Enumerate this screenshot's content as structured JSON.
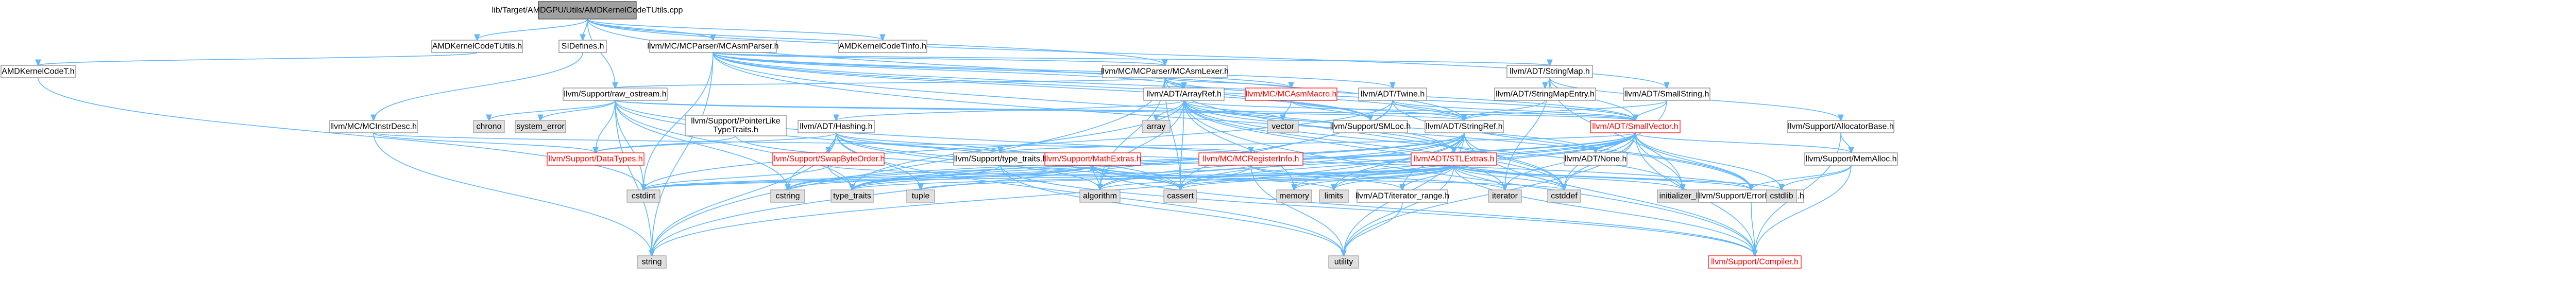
{
  "graph": {
    "title": "",
    "nodes": [
      {
        "id": "root",
        "label": "lib/Target/AMDGPU/Utils/AMDKernelCodeTUtils.cpp",
        "kind": "root"
      },
      {
        "id": "AMDKernelCodeTUtils.h",
        "label": "AMDKernelCodeTUtils.h",
        "kind": "doc"
      },
      {
        "id": "SIDefines.h",
        "label": "SIDefines.h",
        "kind": "doc"
      },
      {
        "id": "AMDKernelCodeTInfo.h",
        "label": "AMDKernelCodeTInfo.h",
        "kind": "doc"
      },
      {
        "id": "MCAsmParser.h",
        "label": "llvm/MC/MCParser/MCAsmParser.h",
        "kind": "doc"
      },
      {
        "id": "AMDKernelCodeT.h",
        "label": "AMDKernelCodeT.h",
        "kind": "doc"
      },
      {
        "id": "MCAsmLexer.h",
        "label": "llvm/MC/MCParser/MCAsmLexer.h",
        "kind": "doc"
      },
      {
        "id": "StringMap.h",
        "label": "llvm/ADT/StringMap.h",
        "kind": "doc"
      },
      {
        "id": "raw_ostream.h",
        "label": "llvm/Support/raw_ostream.h",
        "kind": "doc"
      },
      {
        "id": "ArrayRef.h",
        "label": "llvm/ADT/ArrayRef.h",
        "kind": "doc"
      },
      {
        "id": "MCAsmMacro.h",
        "label": "llvm/MC/MCAsmMacro.h",
        "kind": "red"
      },
      {
        "id": "Twine.h",
        "label": "llvm/ADT/Twine.h",
        "kind": "doc"
      },
      {
        "id": "StringMapEntry.h",
        "label": "llvm/ADT/StringMapEntry.h",
        "kind": "doc"
      },
      {
        "id": "SmallString.h",
        "label": "llvm/ADT/SmallString.h",
        "kind": "doc"
      },
      {
        "id": "AllocatorBase.h",
        "label": "llvm/Support/AllocatorBase.h",
        "kind": "doc"
      },
      {
        "id": "MCInstrDesc.h",
        "label": "llvm/MC/MCInstrDesc.h",
        "kind": "doc"
      },
      {
        "id": "chrono",
        "label": "chrono",
        "kind": "sys"
      },
      {
        "id": "system_error",
        "label": "system_error",
        "kind": "sys"
      },
      {
        "id": "PointerLikeTypeTraits.h",
        "label": "llvm/Support/PointerLike\nTypeTraits.h",
        "kind": "doc"
      },
      {
        "id": "Hashing.h",
        "label": "llvm/ADT/Hashing.h",
        "kind": "doc"
      },
      {
        "id": "array",
        "label": "array",
        "kind": "sys"
      },
      {
        "id": "vector",
        "label": "vector",
        "kind": "sys"
      },
      {
        "id": "SMLoc.h",
        "label": "llvm/Support/SMLoc.h",
        "kind": "doc"
      },
      {
        "id": "StringRef.h",
        "label": "llvm/ADT/StringRef.h",
        "kind": "doc"
      },
      {
        "id": "SmallVector.h",
        "label": "llvm/ADT/SmallVector.h",
        "kind": "red"
      },
      {
        "id": "MemAlloc.h",
        "label": "llvm/Support/MemAlloc.h",
        "kind": "doc"
      },
      {
        "id": "DataTypes.h",
        "label": "llvm/Support/DataTypes.h",
        "kind": "red"
      },
      {
        "id": "SwapByteOrder.h",
        "label": "llvm/Support/SwapByteOrder.h",
        "kind": "red"
      },
      {
        "id": "type_traits.h",
        "label": "llvm/Support/type_traits.h",
        "kind": "doc"
      },
      {
        "id": "MathExtras.h",
        "label": "llvm/Support/MathExtras.h",
        "kind": "red"
      },
      {
        "id": "MCRegisterInfo.h",
        "label": "llvm/MC/MCRegisterInfo.h",
        "kind": "red"
      },
      {
        "id": "STLExtras.h",
        "label": "llvm/ADT/STLExtras.h",
        "kind": "red"
      },
      {
        "id": "None.h",
        "label": "llvm/ADT/None.h",
        "kind": "doc"
      },
      {
        "id": "cstdint",
        "label": "cstdint",
        "kind": "sys"
      },
      {
        "id": "cstring",
        "label": "cstring",
        "kind": "sys"
      },
      {
        "id": "type_traits",
        "label": "type_traits",
        "kind": "sys"
      },
      {
        "id": "tuple",
        "label": "tuple",
        "kind": "sys"
      },
      {
        "id": "algorithm",
        "label": "algorithm",
        "kind": "sys"
      },
      {
        "id": "cassert",
        "label": "cassert",
        "kind": "sys"
      },
      {
        "id": "memory",
        "label": "memory",
        "kind": "sys"
      },
      {
        "id": "limits",
        "label": "limits",
        "kind": "sys"
      },
      {
        "id": "iterator_range.h",
        "label": "llvm/ADT/iterator_range.h",
        "kind": "doc"
      },
      {
        "id": "iterator",
        "label": "iterator",
        "kind": "sys"
      },
      {
        "id": "cstddef",
        "label": "cstddef",
        "kind": "sys"
      },
      {
        "id": "initializer_list",
        "label": "initializer_list",
        "kind": "sys"
      },
      {
        "id": "ErrorHandling.h",
        "label": "llvm/Support/ErrorHandling.h",
        "kind": "doc"
      },
      {
        "id": "cstdlib",
        "label": "cstdlib",
        "kind": "sys"
      },
      {
        "id": "string",
        "label": "string",
        "kind": "sys"
      },
      {
        "id": "utility",
        "label": "utility",
        "kind": "sys"
      },
      {
        "id": "Compiler.h",
        "label": "llvm/Support/Compiler.h",
        "kind": "red"
      }
    ],
    "edges": [
      [
        "root",
        "AMDKernelCodeTUtils.h"
      ],
      [
        "root",
        "SIDefines.h"
      ],
      [
        "root",
        "AMDKernelCodeTInfo.h"
      ],
      [
        "root",
        "MCAsmParser.h"
      ],
      [
        "root",
        "MCAsmLexer.h"
      ],
      [
        "root",
        "raw_ostream.h"
      ],
      [
        "root",
        "StringRef.h"
      ],
      [
        "root",
        "SmallString.h"
      ],
      [
        "AMDKernelCodeTUtils.h",
        "AMDKernelCodeT.h"
      ],
      [
        "SIDefines.h",
        "MCInstrDesc.h"
      ],
      [
        "AMDKernelCodeT.h",
        "cstdint"
      ],
      [
        "MCAsmParser.h",
        "MCAsmLexer.h"
      ],
      [
        "MCAsmParser.h",
        "StringMap.h"
      ],
      [
        "MCAsmParser.h",
        "ArrayRef.h"
      ],
      [
        "MCAsmParser.h",
        "MCAsmMacro.h"
      ],
      [
        "MCAsmParser.h",
        "Twine.h"
      ],
      [
        "MCAsmParser.h",
        "SmallVector.h"
      ],
      [
        "MCAsmParser.h",
        "StringRef.h"
      ],
      [
        "MCAsmParser.h",
        "SMLoc.h"
      ],
      [
        "MCAsmParser.h",
        "ErrorHandling.h"
      ],
      [
        "MCAsmParser.h",
        "STLExtras.h"
      ],
      [
        "MCAsmParser.h",
        "cstdint"
      ],
      [
        "MCAsmParser.h",
        "string"
      ],
      [
        "MCAsmLexer.h",
        "ArrayRef.h"
      ],
      [
        "MCAsmLexer.h",
        "MCAsmMacro.h"
      ],
      [
        "MCAsmLexer.h",
        "SmallVector.h"
      ],
      [
        "MCAsmLexer.h",
        "SMLoc.h"
      ],
      [
        "MCAsmLexer.h",
        "cassert"
      ],
      [
        "MCAsmLexer.h",
        "cstddef"
      ],
      [
        "MCAsmLexer.h",
        "string"
      ],
      [
        "MCAsmLexer.h",
        "algorithm"
      ],
      [
        "StringMap.h",
        "StringMapEntry.h"
      ],
      [
        "StringMap.h",
        "AllocatorBase.h"
      ],
      [
        "StringMap.h",
        "initializer_list"
      ],
      [
        "StringMap.h",
        "iterator"
      ],
      [
        "StringMap.h",
        "SmallVector.h"
      ],
      [
        "StringMapEntry.h",
        "StringRef.h"
      ],
      [
        "raw_ostream.h",
        "StringRef.h"
      ],
      [
        "raw_ostream.h",
        "DataTypes.h"
      ],
      [
        "raw_ostream.h",
        "chrono"
      ],
      [
        "raw_ostream.h",
        "system_error"
      ],
      [
        "raw_ostream.h",
        "cassert"
      ],
      [
        "raw_ostream.h",
        "cstddef"
      ],
      [
        "raw_ostream.h",
        "cstdint"
      ],
      [
        "raw_ostream.h",
        "cstring"
      ],
      [
        "raw_ostream.h",
        "string"
      ],
      [
        "raw_ostream.h",
        "type_traits"
      ],
      [
        "raw_ostream.h",
        "SmallVector.h"
      ],
      [
        "ArrayRef.h",
        "Hashing.h"
      ],
      [
        "ArrayRef.h",
        "None.h"
      ],
      [
        "ArrayRef.h",
        "SmallVector.h"
      ],
      [
        "ArrayRef.h",
        "STLExtras.h"
      ],
      [
        "ArrayRef.h",
        "Compiler.h"
      ],
      [
        "ArrayRef.h",
        "algorithm"
      ],
      [
        "ArrayRef.h",
        "array"
      ],
      [
        "ArrayRef.h",
        "cassert"
      ],
      [
        "ArrayRef.h",
        "cstddef"
      ],
      [
        "ArrayRef.h",
        "initializer_list"
      ],
      [
        "ArrayRef.h",
        "iterator"
      ],
      [
        "ArrayRef.h",
        "memory"
      ],
      [
        "ArrayRef.h",
        "type_traits"
      ],
      [
        "ArrayRef.h",
        "vector"
      ],
      [
        "MCAsmMacro.h",
        "StringRef.h"
      ],
      [
        "MCAsmMacro.h",
        "SMLoc.h"
      ],
      [
        "MCAsmMacro.h",
        "vector"
      ],
      [
        "Twine.h",
        "SmallVector.h"
      ],
      [
        "Twine.h",
        "StringRef.h"
      ],
      [
        "Twine.h",
        "ErrorHandling.h"
      ],
      [
        "Twine.h",
        "cassert"
      ],
      [
        "Twine.h",
        "cstdint"
      ],
      [
        "Twine.h",
        "string"
      ],
      [
        "SmallString.h",
        "SmallVector.h"
      ],
      [
        "SmallString.h",
        "StringRef.h"
      ],
      [
        "SmallString.h",
        "cstddef"
      ],
      [
        "AllocatorBase.h",
        "Compiler.h"
      ],
      [
        "AllocatorBase.h",
        "MemAlloc.h"
      ],
      [
        "MCInstrDesc.h",
        "MCRegisterInfo.h"
      ],
      [
        "MCInstrDesc.h",
        "DataTypes.h"
      ],
      [
        "MCInstrDesc.h",
        "string"
      ],
      [
        "PointerLikeTypeTraits.h",
        "DataTypes.h"
      ],
      [
        "PointerLikeTypeTraits.h",
        "cassert"
      ],
      [
        "Hashing.h",
        "ErrorHandling.h"
      ],
      [
        "Hashing.h",
        "SwapByteOrder.h"
      ],
      [
        "Hashing.h",
        "type_traits.h"
      ],
      [
        "Hashing.h",
        "algorithm"
      ],
      [
        "Hashing.h",
        "cassert"
      ],
      [
        "Hashing.h",
        "cstring"
      ],
      [
        "Hashing.h",
        "string"
      ],
      [
        "Hashing.h",
        "tuple"
      ],
      [
        "Hashing.h",
        "utility"
      ],
      [
        "Hashing.h",
        "DataTypes.h"
      ],
      [
        "StringRef.h",
        "STLExtras.h"
      ],
      [
        "StringRef.h",
        "iterator_range.h"
      ],
      [
        "StringRef.h",
        "Compiler.h"
      ],
      [
        "StringRef.h",
        "algorithm"
      ],
      [
        "StringRef.h",
        "cassert"
      ],
      [
        "StringRef.h",
        "cstddef"
      ],
      [
        "StringRef.h",
        "cstring"
      ],
      [
        "StringRef.h",
        "limits"
      ],
      [
        "StringRef.h",
        "string"
      ],
      [
        "StringRef.h",
        "type_traits"
      ],
      [
        "StringRef.h",
        "utility"
      ],
      [
        "SmallVector.h",
        "Compiler.h"
      ],
      [
        "SmallVector.h",
        "ErrorHandling.h"
      ],
      [
        "SmallVector.h",
        "MemAlloc.h"
      ],
      [
        "SmallVector.h",
        "type_traits.h"
      ],
      [
        "SmallVector.h",
        "algorithm"
      ],
      [
        "SmallVector.h",
        "cassert"
      ],
      [
        "SmallVector.h",
        "cstddef"
      ],
      [
        "SmallVector.h",
        "cstdlib"
      ],
      [
        "SmallVector.h",
        "cstring"
      ],
      [
        "SmallVector.h",
        "initializer_list"
      ],
      [
        "SmallVector.h",
        "iterator"
      ],
      [
        "SmallVector.h",
        "limits"
      ],
      [
        "SmallVector.h",
        "memory"
      ],
      [
        "SmallVector.h",
        "new"
      ],
      [
        "SmallVector.h",
        "type_traits"
      ],
      [
        "SmallVector.h",
        "utility"
      ],
      [
        "SmallVector.h",
        "None.h"
      ],
      [
        "MemAlloc.h",
        "Compiler.h"
      ],
      [
        "MemAlloc.h",
        "ErrorHandling.h"
      ],
      [
        "MemAlloc.h",
        "cstdlib"
      ],
      [
        "SwapByteOrder.h",
        "cstddef"
      ],
      [
        "SwapByteOrder.h",
        "cstdint"
      ],
      [
        "SwapByteOrder.h",
        "type_traits"
      ],
      [
        "type_traits.h",
        "Compiler.h"
      ],
      [
        "type_traits.h",
        "type_traits"
      ],
      [
        "type_traits.h",
        "utility"
      ],
      [
        "MathExtras.h",
        "Compiler.h"
      ],
      [
        "MathExtras.h",
        "algorithm"
      ],
      [
        "MathExtras.h",
        "cassert"
      ],
      [
        "MathExtras.h",
        "cstdint"
      ],
      [
        "MathExtras.h",
        "cstring"
      ],
      [
        "MathExtras.h",
        "type_traits"
      ],
      [
        "MathExtras.h",
        "limits"
      ],
      [
        "MCRegisterInfo.h",
        "iterator_range.h"
      ],
      [
        "MCRegisterInfo.h",
        "cassert"
      ],
      [
        "MCRegisterInfo.h",
        "cstdint"
      ],
      [
        "MCRegisterInfo.h",
        "iterator"
      ],
      [
        "MCRegisterInfo.h",
        "utility"
      ],
      [
        "STLExtras.h",
        "iterator_range.h"
      ],
      [
        "STLExtras.h",
        "ErrorHandling.h"
      ],
      [
        "STLExtras.h",
        "algorithm"
      ],
      [
        "STLExtras.h",
        "cassert"
      ],
      [
        "STLExtras.h",
        "cstddef"
      ],
      [
        "STLExtras.h",
        "cstdint"
      ],
      [
        "STLExtras.h",
        "cstdlib"
      ],
      [
        "STLExtras.h",
        "initializer_list"
      ],
      [
        "STLExtras.h",
        "iterator"
      ],
      [
        "STLExtras.h",
        "limits"
      ],
      [
        "STLExtras.h",
        "memory"
      ],
      [
        "STLExtras.h",
        "tuple"
      ],
      [
        "STLExtras.h",
        "type_traits"
      ],
      [
        "STLExtras.h",
        "utility"
      ],
      [
        "STLExtras.h",
        "MathExtras.h"
      ],
      [
        "STLExtras.h",
        "Compiler.h"
      ],
      [
        "iterator_range.h",
        "utility"
      ],
      [
        "ErrorHandling.h",
        "Compiler.h"
      ],
      [
        "MCAsmLexer.h",
        "raw_ostream.h"
      ]
    ]
  }
}
